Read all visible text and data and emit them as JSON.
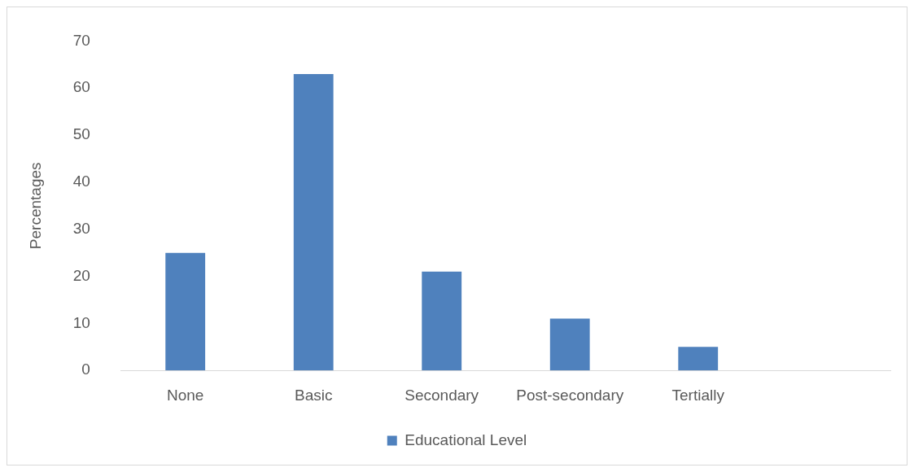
{
  "chart_data": {
    "type": "bar",
    "ylabel": "Percentages",
    "categories": [
      "None",
      "Basic",
      "Secondary",
      "Post-secondary",
      "Tertially",
      null
    ],
    "series": [
      {
        "name": "Educational Level",
        "color": "#4f81bd",
        "values": [
          25,
          63,
          21,
          11,
          5,
          null
        ]
      }
    ],
    "ylim": [
      0,
      70
    ],
    "yticks": [
      0,
      10,
      20,
      30,
      40,
      50,
      60,
      70
    ],
    "grid": false,
    "legend": "bottom"
  }
}
